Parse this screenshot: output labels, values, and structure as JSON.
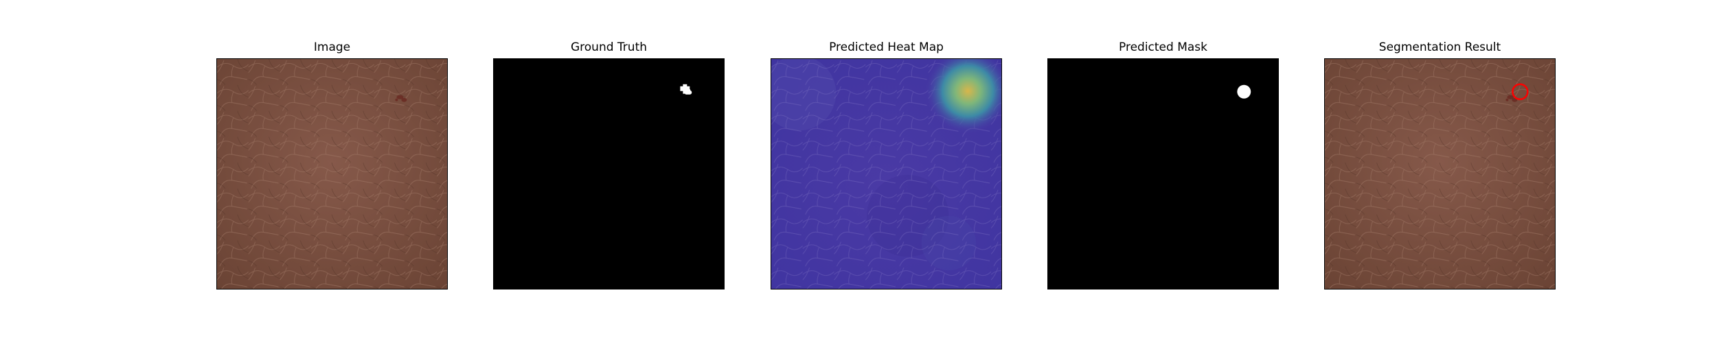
{
  "panels": [
    {
      "title": "Image",
      "icon": "leather-texture-image"
    },
    {
      "title": "Ground Truth",
      "icon": "binary-mask-image"
    },
    {
      "title": "Predicted Heat Map",
      "icon": "heatmap-image"
    },
    {
      "title": "Predicted Mask",
      "icon": "binary-mask-image"
    },
    {
      "title": "Segmentation Result",
      "icon": "segmentation-overlay-image"
    }
  ],
  "colors": {
    "leather": "#7a4f3e",
    "leather_dark": "#5e3a2d",
    "defect": "#6a2a22",
    "mask_background": "#000000",
    "mask_foreground": "#ffffff",
    "heatmap_low": "#4b3aa6",
    "heatmap_high": "#d9b84a",
    "contour": "#ff0000"
  }
}
